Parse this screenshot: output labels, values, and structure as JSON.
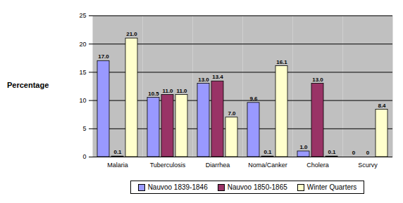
{
  "chart_data": {
    "type": "bar",
    "y_label": "Percentage",
    "categories": [
      "Malaria",
      "Tuberculosis",
      "Diarrhea",
      "Noma/Canker",
      "Cholera",
      "Scurvy"
    ],
    "series": [
      {
        "name": "Nauvoo 1839-1846",
        "color": "#9999ff",
        "values": [
          17.0,
          10.5,
          13.0,
          9.6,
          1.0,
          0
        ],
        "value_labels": [
          "17.0",
          "10.5",
          "13.0",
          "9.6",
          "1.0",
          "0"
        ]
      },
      {
        "name": "Nauvoo 1850-1865",
        "color": "#993366",
        "values": [
          0.1,
          11.0,
          13.4,
          0.1,
          13.0,
          0
        ],
        "value_labels": [
          "0.1",
          "11.0",
          "13.4",
          "0.1",
          "13.0",
          "0"
        ]
      },
      {
        "name": "Winter Quarters",
        "color": "#ffffcc",
        "values": [
          21.0,
          11.0,
          7.0,
          16.1,
          0.1,
          8.4
        ],
        "value_labels": [
          "21.0",
          "11.0",
          "7.0",
          "16.1",
          "0.1",
          "8.4"
        ]
      }
    ],
    "ylim": [
      0,
      25
    ],
    "yticks": [
      0,
      5,
      10,
      15,
      20,
      25
    ],
    "grid": true,
    "legend": "bottom",
    "data_labels": true
  }
}
